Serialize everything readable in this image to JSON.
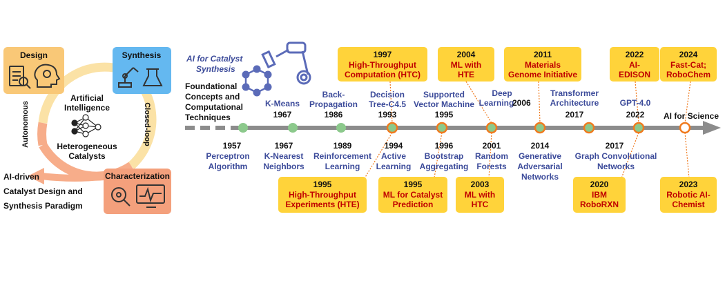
{
  "cycle": {
    "quadrants": {
      "design": "Design",
      "synthesis": "Synthesis",
      "characterization": "Characterization"
    },
    "center": {
      "line1": "Artificial",
      "line2": "Intelligence",
      "line3": "Heterogeneous",
      "line4": "Catalysts"
    },
    "arc_labels": {
      "left": "Autonomous",
      "right": "Closed-loop"
    },
    "paradigm": {
      "line1": "AI-driven",
      "line2": "Catalyst Design and",
      "line3": "Synthesis Paradigm"
    },
    "colors": {
      "design": "#f9c877",
      "synthesis": "#64b8f0",
      "characterization": "#f4a07c",
      "arc_top": "#fbe2a6",
      "arc_bottom": "#f7ad8a"
    }
  },
  "timeline": {
    "ai_title": {
      "line1": "AI for Catalyst",
      "line2": "Synthesis"
    },
    "foundational": {
      "line1": "Foundational",
      "line2": "Concepts and",
      "line3": "Computational",
      "line4": "Techniques"
    },
    "end_label": "AI for Science",
    "colors": {
      "axis": "#8c8c8c",
      "node_green": "#8cc98c",
      "node_orange_ring": "#f07a1e",
      "box_fill": "#ffd33a",
      "box_text": "#c00000",
      "algo_text": "#3c4b9a"
    },
    "above_labels": [
      {
        "id": "kmeans",
        "name1": "K-Means",
        "name2": "",
        "year": "1967"
      },
      {
        "id": "backprop",
        "name1": "Back-",
        "name2": "Propagation",
        "year": "1986"
      },
      {
        "id": "c45",
        "name1": "Decision",
        "name2": "Tree-C4.5",
        "year": "1993"
      },
      {
        "id": "svm",
        "name1": "Supported",
        "name2": "Vector Machine",
        "year": "1995"
      },
      {
        "id": "deep",
        "name1": "Deep",
        "name2": "Learning",
        "year": "2006"
      },
      {
        "id": "transformer",
        "name1": "Transformer",
        "name2": "Architecture",
        "year": "2017"
      },
      {
        "id": "gpt",
        "name1": "GPT-4.0",
        "name2": "",
        "year": "2022"
      }
    ],
    "below_labels": [
      {
        "id": "perceptron",
        "year": "1957",
        "name1": "Perceptron",
        "name2": "Algorithm"
      },
      {
        "id": "knn",
        "year": "1967",
        "name1": "K-Nearest",
        "name2": "Neighbors"
      },
      {
        "id": "rl",
        "year": "1989",
        "name1": "Reinforcement",
        "name2": "Learning"
      },
      {
        "id": "al",
        "year": "1994",
        "name1": "Active",
        "name2": "Learning"
      },
      {
        "id": "bagging",
        "year": "1996",
        "name1": "Bootstrap",
        "name2": "Aggregating"
      },
      {
        "id": "rf",
        "year": "2001",
        "name1": "Random",
        "name2": "Forests"
      },
      {
        "id": "gan",
        "year": "2014",
        "name1": "Generative",
        "name2": "Adversarial",
        "name3": "Networks"
      },
      {
        "id": "gcn",
        "year": "2017",
        "name1": "Graph Convolutional",
        "name2": "Networks"
      }
    ],
    "boxes_top": [
      {
        "id": "htc1997",
        "year": "1997",
        "line1": "High-Throughput",
        "line2": "Computation (HTC)"
      },
      {
        "id": "mlhte2004",
        "year": "2004",
        "line1": "ML with",
        "line2": "HTE"
      },
      {
        "id": "mgi2011",
        "year": "2011",
        "line1": "Materials",
        "line2": "Genome Initiative"
      },
      {
        "id": "edison2022",
        "year": "2022",
        "line1": "AI-",
        "line2": "EDISON"
      },
      {
        "id": "fastcat2024",
        "year": "2024",
        "line1": "Fast-Cat;",
        "line2": "RoboChem"
      }
    ],
    "boxes_bottom": [
      {
        "id": "hte1995",
        "year": "1995",
        "line1": "High-Throughput",
        "line2": "Experiments (HTE)"
      },
      {
        "id": "mlcat1995",
        "year": "1995",
        "line1": "ML for Catalyst",
        "line2": "Prediction"
      },
      {
        "id": "mlhtc2003",
        "year": "2003",
        "line1": "ML with",
        "line2": "HTC"
      },
      {
        "id": "ibm2020",
        "year": "2020",
        "line1": "IBM",
        "line2": "RoboRXN"
      },
      {
        "id": "robotic2023",
        "year": "2023",
        "line1": "Robotic AI-",
        "line2": "Chemist"
      }
    ]
  }
}
